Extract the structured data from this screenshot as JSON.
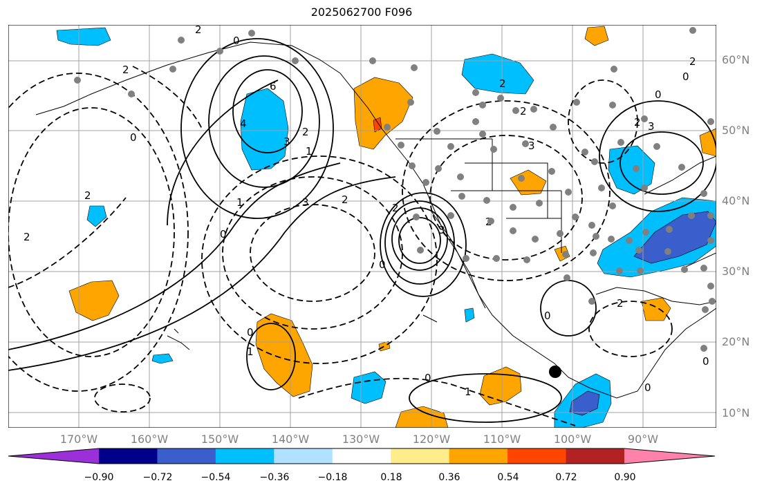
{
  "title": "2025062700 F096",
  "map": {
    "lat_labels": [
      "60°N",
      "50°N",
      "40°N",
      "30°N",
      "20°N",
      "10°N"
    ],
    "lon_labels": [
      "170°W",
      "160°W",
      "150°W",
      "140°W",
      "130°W",
      "120°W",
      "110°W",
      "100°W",
      "90°W"
    ],
    "contour_labels": [
      "2",
      "0",
      "2",
      "6",
      "4",
      "3",
      "2",
      "0",
      "1",
      "2",
      "3",
      "2",
      "0",
      "2",
      "3",
      "1",
      "2",
      "2",
      "0",
      "0",
      "1",
      "0",
      "1",
      "0",
      "2",
      "2",
      "3",
      "2",
      "0",
      "3",
      "2",
      "0",
      "2",
      "0",
      "0"
    ]
  },
  "colorbar": {
    "ticks": [
      "−0.90",
      "−0.72",
      "−0.54",
      "−0.36",
      "−0.18",
      "0.18",
      "0.36",
      "0.54",
      "0.72",
      "0.90"
    ],
    "colors": [
      "#9b30d9",
      "#00008b",
      "#3a5fcd",
      "#00bfff",
      "#b0e2ff",
      "#ffffff",
      "#ffec8b",
      "#ffa500",
      "#ff4500",
      "#b22222",
      "#ff82ab"
    ]
  },
  "colors": {
    "blue_fill": "#00bfff",
    "dark_blue_fill": "#3a5fcd",
    "orange_fill": "#ffa500",
    "red_fill": "#ff4500",
    "grid": "#a0a0a0",
    "station_dot": "#808080"
  }
}
